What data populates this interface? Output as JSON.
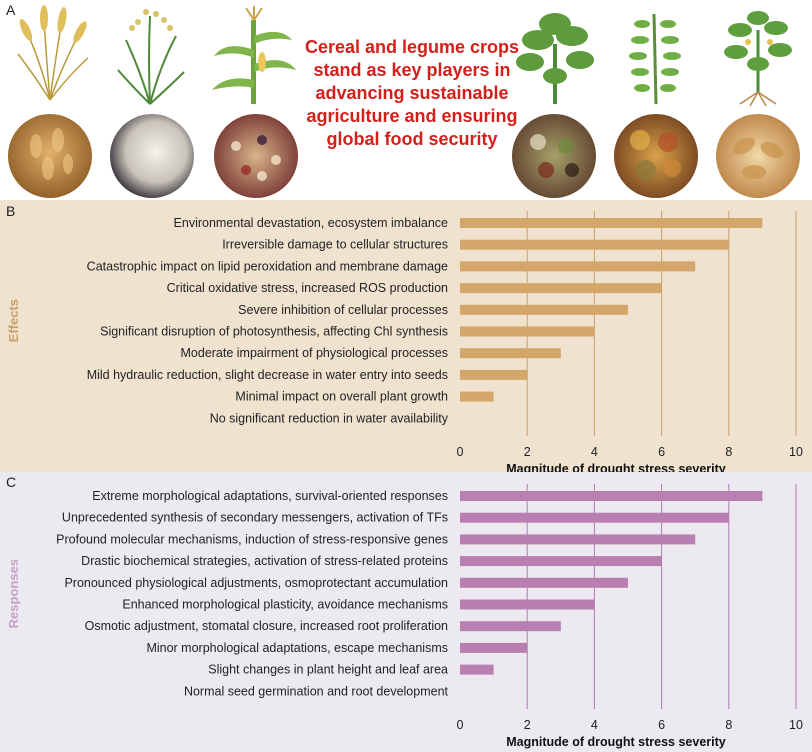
{
  "panels": {
    "a_letter": "A",
    "b_letter": "B",
    "c_letter": "C"
  },
  "headline": "Cereal and legume crops stand as key players in advancing sustainable agriculture and ensuring global food security",
  "colors": {
    "headline": "#d4201a",
    "effects_bar": "#d5a66a",
    "effects_grid": "#c9a06a",
    "effects_label": "#c9a06a",
    "responses_bar": "#b97fb0",
    "responses_grid": "#b07bb0",
    "responses_label": "#c7a0c7"
  },
  "chart_data": [
    {
      "type": "bar",
      "orientation": "horizontal",
      "side_label": "Effects",
      "xlabel": "Magnitude of drought stress severity",
      "xlim": [
        0,
        10
      ],
      "xticks": [
        0,
        2,
        4,
        6,
        8,
        10
      ],
      "grid": true,
      "categories": [
        "Environmental devastation, ecosystem imbalance",
        "Irreversible damage to cellular structures",
        "Catastrophic impact on lipid peroxidation and membrane damage",
        "Critical oxidative stress, increased ROS production",
        "Severe inhibition of cellular processes",
        "Significant disruption of photosynthesis, affecting Chl synthesis",
        "Moderate impairment of physiological processes",
        "Mild hydraulic reduction, slight decrease in water entry into seeds",
        "Minimal impact on overall plant growth",
        "No significant reduction in water availability"
      ],
      "values": [
        9,
        8,
        7,
        6,
        5,
        4,
        3,
        2,
        1,
        0
      ]
    },
    {
      "type": "bar",
      "orientation": "horizontal",
      "side_label": "Responses",
      "xlabel": "Magnitude of drought stress severity",
      "xlim": [
        0,
        10
      ],
      "xticks": [
        0,
        2,
        4,
        6,
        8,
        10
      ],
      "grid": true,
      "categories": [
        "Extreme morphological adaptations, survival-oriented responses",
        "Unprecedented synthesis of secondary messengers, activation of TFs",
        "Profound molecular mechanisms, induction of stress-responsive genes",
        "Drastic biochemical strategies, activation of stress-related proteins",
        "Pronounced physiological adjustments, osmoprotectant accumulation",
        "Enhanced morphological plasticity, avoidance mechanisms",
        "Osmotic adjustment, stomatal closure, increased root proliferation",
        "Minor morphological adaptations, escape mechanisms",
        "Slight changes in plant height and leaf area",
        "Normal seed germination and root development"
      ],
      "values": [
        9,
        8,
        7,
        6,
        5,
        4,
        3,
        2,
        1,
        0
      ]
    }
  ]
}
